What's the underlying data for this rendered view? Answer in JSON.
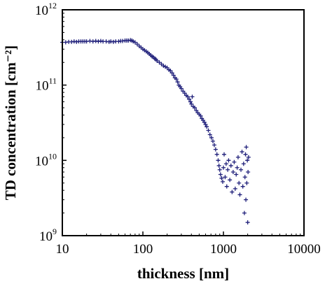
{
  "chart_data": {
    "type": "scatter",
    "title": "",
    "xlabel": "thickness [nm]",
    "ylabel": "TD concentration [cm⁻²]",
    "x_scale": "log",
    "y_scale": "log",
    "xlim": [
      10,
      10000
    ],
    "ylim": [
      1000000000.0,
      1000000000000.0
    ],
    "grid": false,
    "legend": "none",
    "marker": "plus",
    "marker_color": "#1f1f7a",
    "x_ticks": [
      {
        "value": 10,
        "label": "10"
      },
      {
        "value": 100,
        "label": "100"
      },
      {
        "value": 1000,
        "label": "1000"
      },
      {
        "value": 10000,
        "label": "10000"
      }
    ],
    "y_ticks": [
      {
        "value": 1000000000.0,
        "base": "10",
        "exp": "9"
      },
      {
        "value": 10000000000.0,
        "base": "10",
        "exp": "10"
      },
      {
        "value": 100000000000.0,
        "base": "10",
        "exp": "11"
      },
      {
        "value": 1000000000000.0,
        "base": "10",
        "exp": "12"
      }
    ],
    "series": [
      {
        "points": [
          [
            10,
            370000000000.0
          ],
          [
            11,
            370000000000.0
          ],
          [
            12,
            375000000000.0
          ],
          [
            13,
            375000000000.0
          ],
          [
            14,
            380000000000.0
          ],
          [
            15,
            375000000000.0
          ],
          [
            16,
            380000000000.0
          ],
          [
            17,
            380000000000.0
          ],
          [
            18,
            380000000000.0
          ],
          [
            19,
            380000000000.0
          ],
          [
            20,
            380000000000.0
          ],
          [
            22,
            385000000000.0
          ],
          [
            24,
            380000000000.0
          ],
          [
            26,
            385000000000.0
          ],
          [
            28,
            380000000000.0
          ],
          [
            30,
            385000000000.0
          ],
          [
            32,
            380000000000.0
          ],
          [
            35,
            380000000000.0
          ],
          [
            38,
            375000000000.0
          ],
          [
            40,
            380000000000.0
          ],
          [
            43,
            375000000000.0
          ],
          [
            46,
            380000000000.0
          ],
          [
            50,
            380000000000.0
          ],
          [
            53,
            385000000000.0
          ],
          [
            56,
            385000000000.0
          ],
          [
            60,
            390000000000.0
          ],
          [
            63,
            390000000000.0
          ],
          [
            66,
            390000000000.0
          ],
          [
            70,
            395000000000.0
          ],
          [
            73,
            390000000000.0
          ],
          [
            76,
            380000000000.0
          ],
          [
            80,
            370000000000.0
          ],
          [
            85,
            350000000000.0
          ],
          [
            90,
            330000000000.0
          ],
          [
            95,
            315000000000.0
          ],
          [
            100,
            300000000000.0
          ],
          [
            105,
            290000000000.0
          ],
          [
            110,
            280000000000.0
          ],
          [
            115,
            270000000000.0
          ],
          [
            120,
            260000000000.0
          ],
          [
            125,
            250000000000.0
          ],
          [
            130,
            240000000000.0
          ],
          [
            135,
            235000000000.0
          ],
          [
            140,
            225000000000.0
          ],
          [
            145,
            220000000000.0
          ],
          [
            150,
            210000000000.0
          ],
          [
            160,
            200000000000.0
          ],
          [
            170,
            190000000000.0
          ],
          [
            180,
            180000000000.0
          ],
          [
            190,
            175000000000.0
          ],
          [
            200,
            170000000000.0
          ],
          [
            210,
            160000000000.0
          ],
          [
            220,
            155000000000.0
          ],
          [
            230,
            145000000000.0
          ],
          [
            240,
            135000000000.0
          ],
          [
            250,
            125000000000.0
          ],
          [
            260,
            120000000000.0
          ],
          [
            270,
            110000000000.0
          ],
          [
            280,
            100000000000.0
          ],
          [
            290,
            95000000000.0
          ],
          [
            300,
            90000000000.0
          ],
          [
            315,
            83000000000.0
          ],
          [
            330,
            78000000000.0
          ],
          [
            345,
            73000000000.0
          ],
          [
            360,
            70000000000.0
          ],
          [
            375,
            65000000000.0
          ],
          [
            390,
            60000000000.0
          ],
          [
            400,
            56000000000.0
          ],
          [
            410,
            70000000000.0
          ],
          [
            420,
            52000000000.0
          ],
          [
            440,
            50000000000.0
          ],
          [
            460,
            46000000000.0
          ],
          [
            480,
            43000000000.0
          ],
          [
            500,
            41000000000.0
          ],
          [
            520,
            39000000000.0
          ],
          [
            540,
            36000000000.0
          ],
          [
            560,
            34000000000.0
          ],
          [
            580,
            32000000000.0
          ],
          [
            600,
            30000000000.0
          ],
          [
            620,
            28000000000.0
          ],
          [
            650,
            25000000000.0
          ],
          [
            680,
            22000000000.0
          ],
          [
            710,
            20000000000.0
          ],
          [
            740,
            18000000000.0
          ],
          [
            770,
            16000000000.0
          ],
          [
            800,
            14000000000.0
          ],
          [
            830,
            12000000000.0
          ],
          [
            860,
            10000000000.0
          ],
          [
            880,
            8500000000.0
          ],
          [
            900,
            7500000000.0
          ],
          [
            920,
            6500000000.0
          ],
          [
            950,
            5800000000.0
          ],
          [
            980,
            5200000000.0
          ],
          [
            1000,
            8000000000.0
          ],
          [
            1020,
            12000000000.0
          ],
          [
            1050,
            6000000000.0
          ],
          [
            1080,
            9000000000.0
          ],
          [
            1100,
            4500000000.0
          ],
          [
            1130,
            7500000000.0
          ],
          [
            1160,
            10000000000.0
          ],
          [
            1200,
            5500000000.0
          ],
          [
            1240,
            8500000000.0
          ],
          [
            1280,
            3800000000.0
          ],
          [
            1320,
            7000000000.0
          ],
          [
            1360,
            9500000000.0
          ],
          [
            1400,
            4200000000.0
          ],
          [
            1440,
            6500000000.0
          ],
          [
            1480,
            8000000000.0
          ],
          [
            1520,
            11000000000.0
          ],
          [
            1560,
            5000000000.0
          ],
          [
            1600,
            3500000000.0
          ],
          [
            1650,
            7500000000.0
          ],
          [
            1700,
            13000000000.0
          ],
          [
            1740,
            4500000000.0
          ],
          [
            1780,
            9000000000.0
          ],
          [
            1820,
            2000000000.0
          ],
          [
            1850,
            6000000000.0
          ],
          [
            1880,
            12000000000.0
          ],
          [
            1900,
            3000000000.0
          ],
          [
            1920,
            15000000000.0
          ],
          [
            1950,
            5000000000.0
          ],
          [
            1980,
            10000000000.0
          ],
          [
            2000,
            1500000000.0
          ],
          [
            2020,
            7000000000.0
          ],
          [
            2050,
            11000000000.0
          ]
        ]
      }
    ]
  }
}
